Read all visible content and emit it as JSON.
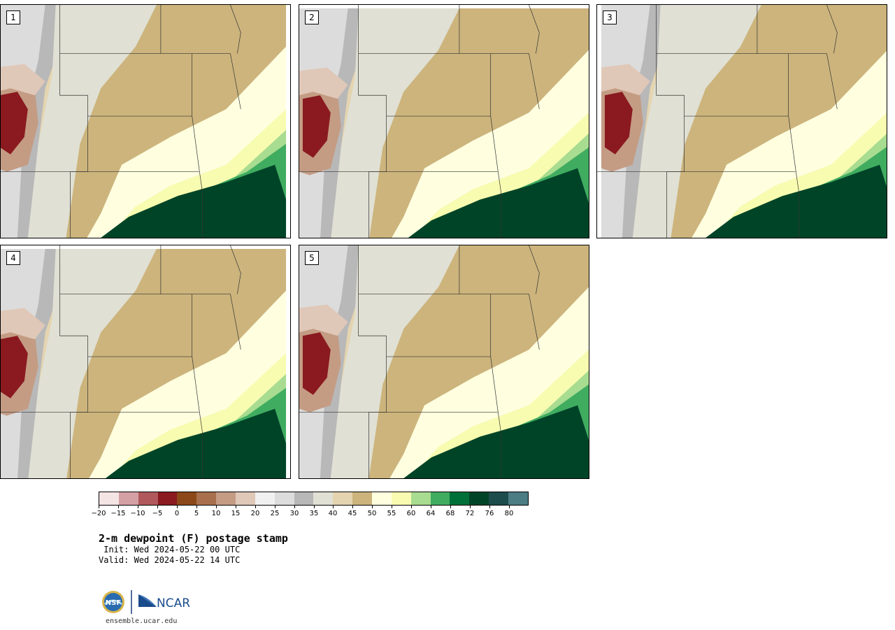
{
  "panels": [
    {
      "label": "1"
    },
    {
      "label": "2"
    },
    {
      "label": "3"
    },
    {
      "label": "4"
    },
    {
      "label": "5"
    }
  ],
  "colorbar": {
    "colors": [
      "#f4e4e4",
      "#d4a0a4",
      "#b0585c",
      "#8a1a20",
      "#8c4818",
      "#a8704c",
      "#c49c84",
      "#e0c8b8",
      "#f0f0f0",
      "#dcdcdc",
      "#b8b8b8",
      "#e0e0d4",
      "#e4d4b0",
      "#ccb47c",
      "#ffffe0",
      "#f8fcb0",
      "#a8dc90",
      "#40ac60",
      "#007038",
      "#004428",
      "#1c4c4c",
      "#4c7c84"
    ],
    "tick_labels": [
      "−20",
      "−15",
      "−10",
      "−5",
      "0",
      "5",
      "10",
      "15",
      "20",
      "25",
      "30",
      "35",
      "40",
      "45",
      "50",
      "55",
      "60",
      "64",
      "68",
      "72",
      "76",
      "80"
    ]
  },
  "title": "2-m dewpoint (F) postage stamp",
  "init_line": " Init: Wed 2024-05-22 00 UTC",
  "valid_line": "Valid: Wed 2024-05-22 14 UTC",
  "logos": {
    "nsf": "NSF",
    "ncar": "NCAR"
  },
  "website": "ensemble.ucar.edu"
}
